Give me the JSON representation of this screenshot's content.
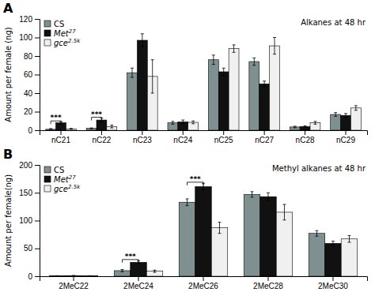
{
  "chart_data": [
    {
      "type": "bar",
      "title": "Alkanes at 48 hr",
      "ylabel": "Amount per female (ng)",
      "categories": [
        "nC21",
        "nC22",
        "nC23",
        "nC24",
        "nC25",
        "nC27",
        "nC28",
        "nC29"
      ],
      "series": [
        {
          "name": "CS",
          "color": "#7f9090",
          "values": [
            1.0,
            2.0,
            62.0,
            8.0,
            76.0,
            74.0,
            3.5,
            17.0
          ],
          "errors": [
            0.8,
            0.5,
            5.0,
            1.5,
            5.0,
            4.0,
            0.8,
            2.0
          ]
        },
        {
          "name": "Met27",
          "color": "#111111",
          "values": [
            8.0,
            11.0,
            97.0,
            9.0,
            63.0,
            50.0,
            4.0,
            16.0
          ],
          "errors": [
            1.5,
            2.0,
            7.0,
            2.0,
            4.0,
            3.0,
            0.8,
            2.0
          ]
        },
        {
          "name": "gce2.5k",
          "color": "#f0f0f0",
          "values": [
            1.5,
            4.0,
            58.0,
            8.5,
            88.0,
            91.0,
            8.0,
            24.0
          ],
          "errors": [
            0.5,
            1.5,
            18.0,
            1.5,
            4.0,
            9.0,
            1.5,
            2.5
          ]
        }
      ],
      "ylim": [
        0,
        120
      ],
      "yticks": [
        0,
        20,
        40,
        60,
        80,
        100,
        120
      ],
      "grid": false,
      "legend": "upper left",
      "annotations": [
        {
          "text": "A"
        },
        {
          "text": "***",
          "x": "nC21",
          "y": 10,
          "between": [
            "CS",
            "Met27"
          ]
        },
        {
          "text": "***",
          "x": "nC22",
          "y": 14,
          "between": [
            "CS",
            "Met27"
          ]
        }
      ]
    },
    {
      "type": "bar",
      "title": "Methyl alkanes at 48 hr",
      "ylabel": "Amount per female(ng)",
      "categories": [
        "2MeC22",
        "2MeC24",
        "2MeC26",
        "2MeC28",
        "2MeC30"
      ],
      "series": [
        {
          "name": "CS",
          "color": "#7f9090",
          "values": [
            0.5,
            10.0,
            133.0,
            147.0,
            77.0
          ],
          "errors": [
            0.3,
            2.0,
            6.0,
            5.0,
            5.0
          ]
        },
        {
          "name": "Met27",
          "color": "#111111",
          "values": [
            1.0,
            25.0,
            161.0,
            143.0,
            59.0
          ],
          "errors": [
            0.5,
            3.0,
            6.0,
            7.0,
            4.0
          ]
        },
        {
          "name": "gce2.5k",
          "color": "#f0f0f0",
          "values": [
            0.5,
            9.0,
            87.0,
            115.0,
            67.0
          ],
          "errors": [
            0.3,
            2.0,
            10.0,
            14.0,
            6.0
          ]
        }
      ],
      "ylim": [
        0,
        200
      ],
      "yticks": [
        0,
        50,
        100,
        150,
        200
      ],
      "grid": false,
      "legend": "upper left",
      "annotations": [
        {
          "text": "B"
        },
        {
          "text": "***",
          "x": "2MeC24",
          "y": 30,
          "between": [
            "CS",
            "Met27"
          ]
        },
        {
          "text": "***",
          "x": "2MeC26",
          "y": 169,
          "between": [
            "CS",
            "Met27"
          ]
        }
      ]
    }
  ]
}
